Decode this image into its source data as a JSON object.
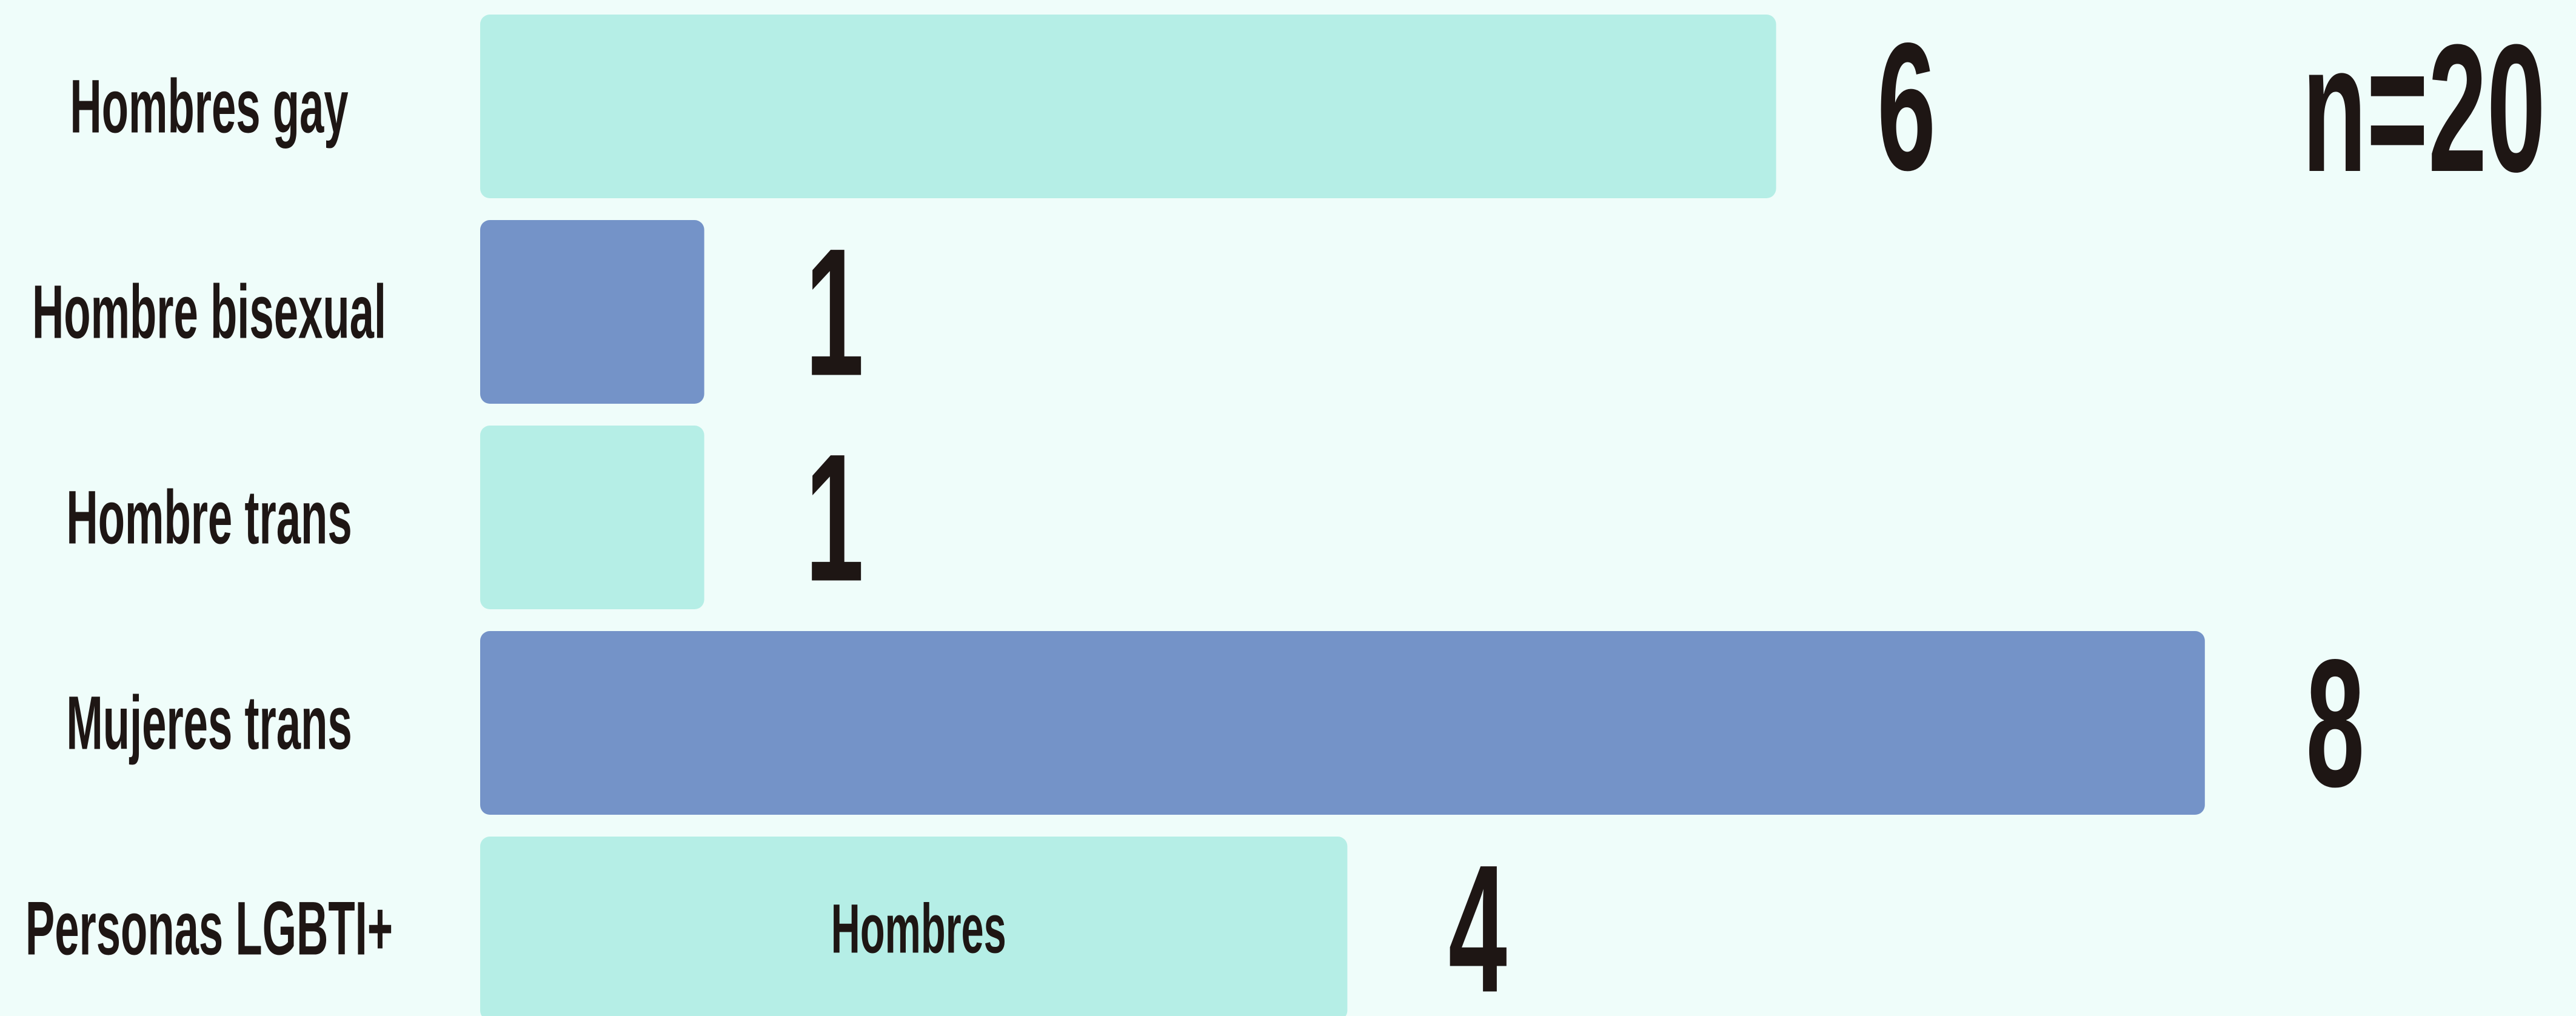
{
  "chart_data": {
    "type": "bar",
    "orientation": "horizontal",
    "categories": [
      "Hombres gay",
      "Hombre bisexual",
      "Hombre trans",
      "Mujeres trans",
      "Personas LGBTI+"
    ],
    "values": [
      6,
      1,
      1,
      8,
      4
    ],
    "colors": [
      "#b5eee6",
      "#7493c8",
      "#b5eee6",
      "#7493c8",
      "#b5eee6"
    ],
    "annotation": "n=20",
    "inner_label": "Hombres"
  }
}
